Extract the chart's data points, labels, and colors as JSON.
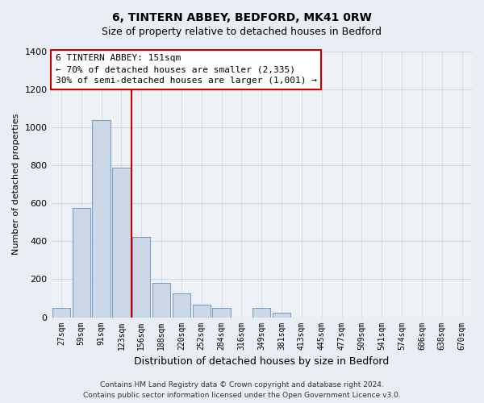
{
  "title": "6, TINTERN ABBEY, BEDFORD, MK41 0RW",
  "subtitle": "Size of property relative to detached houses in Bedford",
  "xlabel": "Distribution of detached houses by size in Bedford",
  "ylabel": "Number of detached properties",
  "categories": [
    "27sqm",
    "59sqm",
    "91sqm",
    "123sqm",
    "156sqm",
    "188sqm",
    "220sqm",
    "252sqm",
    "284sqm",
    "316sqm",
    "349sqm",
    "381sqm",
    "413sqm",
    "445sqm",
    "477sqm",
    "509sqm",
    "541sqm",
    "574sqm",
    "606sqm",
    "638sqm",
    "670sqm"
  ],
  "values": [
    50,
    575,
    1040,
    790,
    425,
    180,
    125,
    65,
    50,
    0,
    50,
    25,
    0,
    0,
    0,
    0,
    0,
    0,
    0,
    0,
    0
  ],
  "bar_color": "#ccd8e8",
  "bar_edge_color": "#7ba0c0",
  "vline_color": "#cc0000",
  "vline_x": 3.5,
  "annotation_title": "6 TINTERN ABBEY: 151sqm",
  "annotation_line1": "← 70% of detached houses are smaller (2,335)",
  "annotation_line2": "30% of semi-detached houses are larger (1,001) →",
  "annotation_box_color": "#ffffff",
  "annotation_box_edge": "#cc0000",
  "ylim": [
    0,
    1400
  ],
  "yticks": [
    0,
    200,
    400,
    600,
    800,
    1000,
    1200,
    1400
  ],
  "footer_line1": "Contains HM Land Registry data © Crown copyright and database right 2024.",
  "footer_line2": "Contains public sector information licensed under the Open Government Licence v3.0.",
  "bg_color": "#e8eef4",
  "plot_bg_color": "#eef2f7"
}
